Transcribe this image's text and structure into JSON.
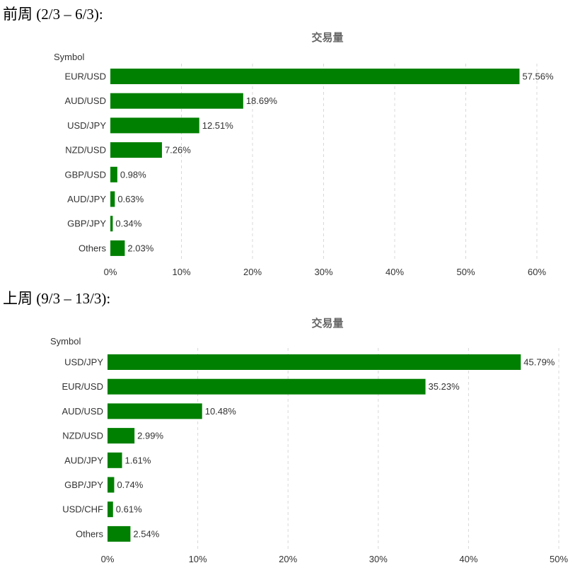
{
  "headings": {
    "previous_week": "前周 (2/3 – 6/3):",
    "last_week": "上周 (9/3 – 13/3):"
  },
  "colors": {
    "bar": "#008000"
  },
  "chart_data": [
    {
      "type": "bar",
      "orientation": "horizontal",
      "title": "交易量",
      "ylabel": "Symbol",
      "xlabel": "",
      "categories": [
        "EUR/USD",
        "AUD/USD",
        "USD/JPY",
        "NZD/USD",
        "GBP/USD",
        "AUD/JPY",
        "GBP/JPY",
        "Others"
      ],
      "values": [
        57.56,
        18.69,
        12.51,
        7.26,
        0.98,
        0.63,
        0.34,
        2.03
      ],
      "value_labels": [
        "57.56%",
        "18.69%",
        "12.51%",
        "7.26%",
        "0.98%",
        "0.63%",
        "0.34%",
        "2.03%"
      ],
      "xlim": [
        0,
        60
      ],
      "xticks": [
        0,
        10,
        20,
        30,
        40,
        50,
        60
      ],
      "xtick_labels": [
        "0%",
        "10%",
        "20%",
        "30%",
        "40%",
        "50%",
        "60%"
      ],
      "grid": "vertical dashed"
    },
    {
      "type": "bar",
      "orientation": "horizontal",
      "title": "交易量",
      "ylabel": "Symbol",
      "xlabel": "",
      "categories": [
        "USD/JPY",
        "EUR/USD",
        "AUD/USD",
        "NZD/USD",
        "AUD/JPY",
        "GBP/JPY",
        "USD/CHF",
        "Others"
      ],
      "values": [
        45.79,
        35.23,
        10.48,
        2.99,
        1.61,
        0.74,
        0.61,
        2.54
      ],
      "value_labels": [
        "45.79%",
        "35.23%",
        "10.48%",
        "2.99%",
        "1.61%",
        "0.74%",
        "0.61%",
        "2.54%"
      ],
      "xlim": [
        0,
        50
      ],
      "xticks": [
        0,
        10,
        20,
        30,
        40,
        50
      ],
      "xtick_labels": [
        "0%",
        "10%",
        "20%",
        "30%",
        "40%",
        "50%"
      ],
      "grid": "vertical dashed"
    }
  ]
}
